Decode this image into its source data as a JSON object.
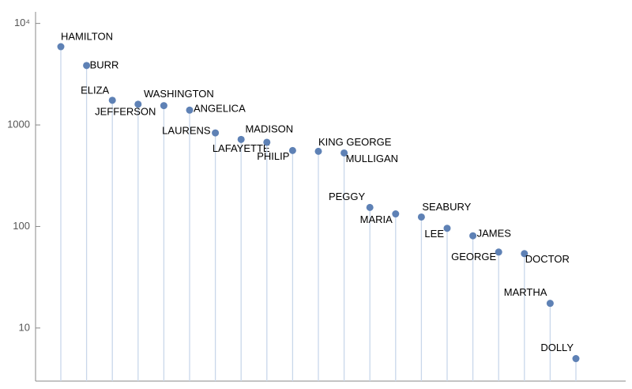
{
  "chart_data": {
    "type": "stem",
    "categories": [
      "HAMILTON",
      "BURR",
      "ELIZA",
      "JEFFERSON",
      "WASHINGTON",
      "ANGELICA",
      "LAURENS",
      "LAFAYETTE",
      "MADISON",
      "PHILIP",
      "KING GEORGE",
      "MULLIGAN",
      "PEGGY",
      "MARIA",
      "SEABURY",
      "LEE",
      "JAMES",
      "GEORGE",
      "DOCTOR",
      "MARTHA",
      "DOLLY"
    ],
    "values": [
      5900,
      3850,
      1750,
      1600,
      1550,
      1400,
      835,
      720,
      675,
      560,
      550,
      530,
      154,
      133,
      124,
      96,
      81,
      56,
      54,
      17.5,
      5
    ],
    "color": "#5e81b5",
    "stem_color": "#c9d7ea",
    "log_scale": true,
    "ylim": [
      3,
      13000
    ],
    "yticks": [
      10,
      100,
      1000,
      {
        "value": 10000,
        "label": "10⁴"
      }
    ]
  }
}
